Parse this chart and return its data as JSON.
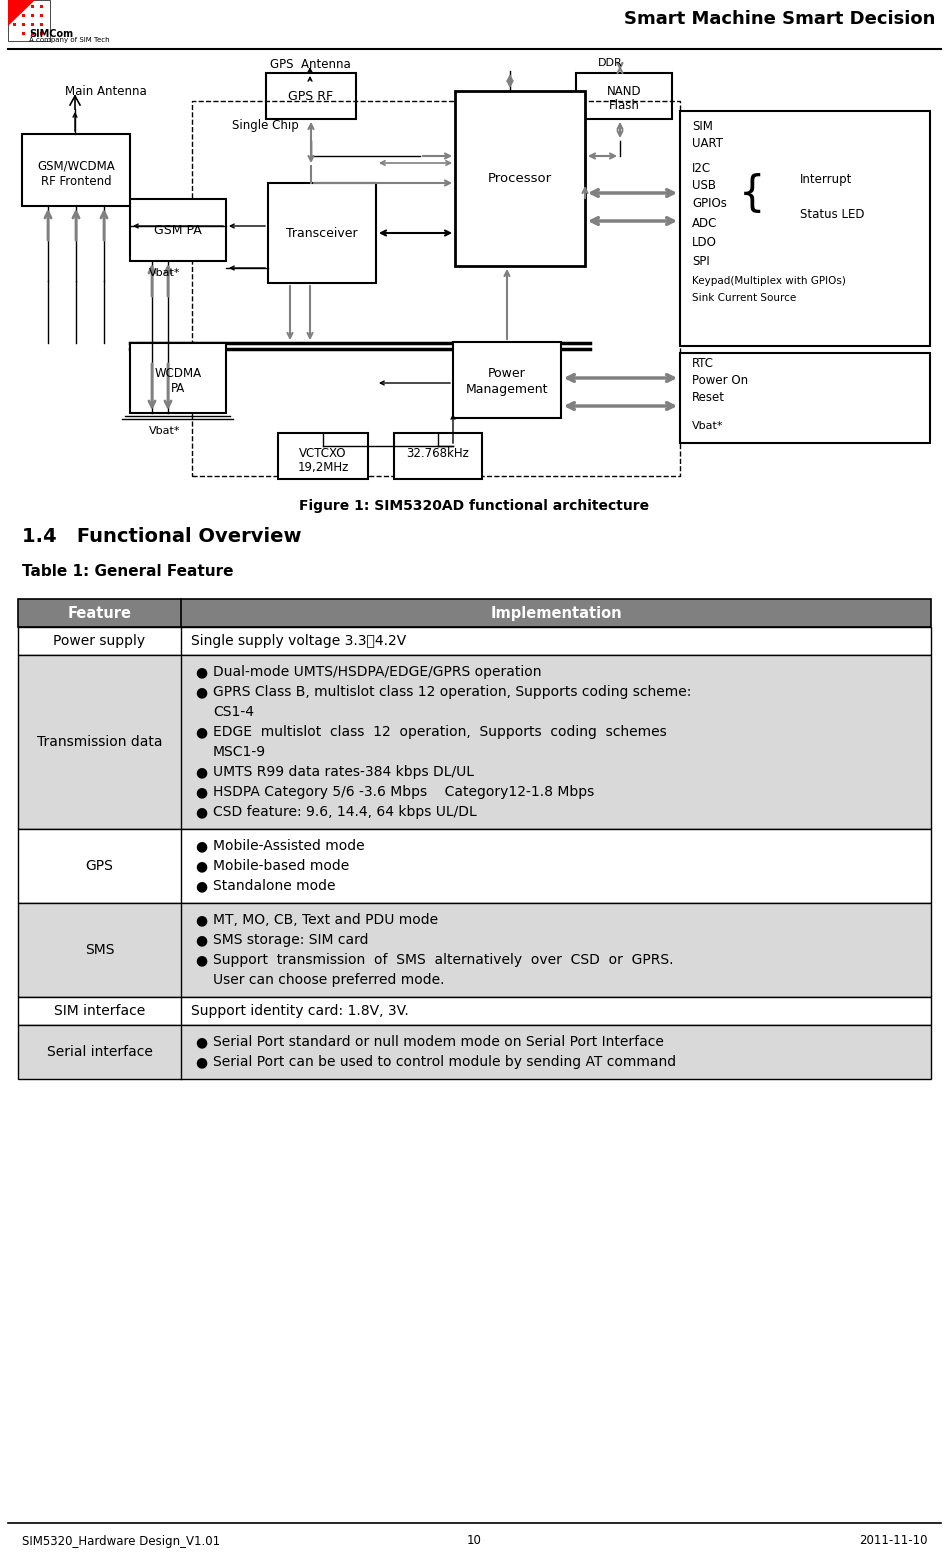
{
  "title_right": "Smart Machine Smart Decision",
  "figure_caption": "Figure 1: SIM5320AD functional architecture",
  "section_title": "1.4   Functional Overview",
  "table_title": "Table 1: General Feature",
  "footer_left": "SIM5320_Hardware Design_V1.01",
  "footer_center": "10",
  "footer_right": "2011-11-10",
  "table_header": [
    "Feature",
    "Implementation"
  ],
  "table_rows": [
    {
      "feature": "Power supply",
      "impl": "Single supply voltage 3.3～4.2V",
      "bullets": false,
      "items": []
    },
    {
      "feature": "Transmission data",
      "impl": "",
      "bullets": true,
      "items": [
        "Dual-mode UMTS/HSDPA/EDGE/GPRS operation",
        "GPRS Class B, multislot class 12 operation, Supports coding scheme:\nCS1-4",
        "EDGE  multislot  class  12  operation,  Supports  coding  schemes\nMSC1-9",
        "UMTS R99 data rates-384 kbps DL/UL",
        "HSDPA Category 5/6 -3.6 Mbps    Category12-1.8 Mbps",
        "CSD feature: 9.6, 14.4, 64 kbps UL/DL"
      ]
    },
    {
      "feature": "GPS",
      "impl": "",
      "bullets": true,
      "items": [
        "Mobile-Assisted mode",
        "Mobile-based mode",
        "Standalone mode"
      ]
    },
    {
      "feature": "SMS",
      "impl": "",
      "bullets": true,
      "items": [
        "MT, MO, CB, Text and PDU mode",
        "SMS storage: SIM card",
        "Support  transmission  of  SMS  alternatively  over  CSD  or  GPRS.\nUser can choose preferred mode."
      ]
    },
    {
      "feature": "SIM interface",
      "impl": "Support identity card: 1.8V, 3V.",
      "bullets": false,
      "items": []
    },
    {
      "feature": "Serial interface",
      "impl": "",
      "bullets": true,
      "items": [
        "Serial Port standard or null modem mode on Serial Port Interface",
        "Serial Port can be used to control module by sending AT command"
      ]
    }
  ],
  "bg_color": "#ffffff",
  "table_header_bg": "#808080",
  "alt_row_bg": "#d9d9d9",
  "table_header_text": "#ffffff"
}
